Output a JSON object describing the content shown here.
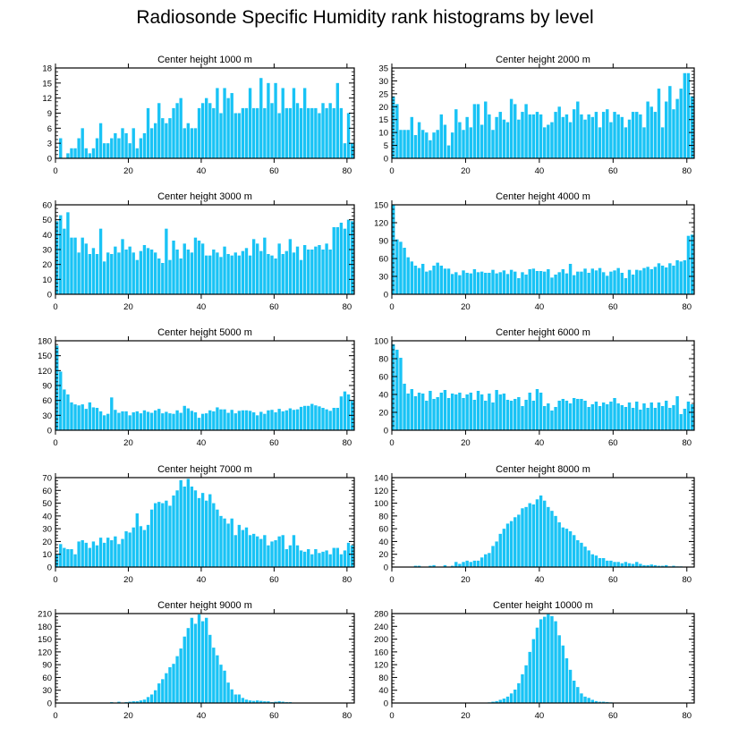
{
  "figure": {
    "title": "Radiosonde Specific Humidity rank histograms by level"
  },
  "colors": {
    "bar": "#19c3f5",
    "bar_edge": "#0e9fd6",
    "axis": "#000000"
  },
  "chart_data": [
    {
      "type": "bar",
      "title": "Center height 1000 m",
      "xlim": [
        0,
        82
      ],
      "ylim": [
        0,
        18
      ],
      "xticks": [
        0,
        20,
        40,
        60,
        80
      ],
      "yticks": [
        0,
        3,
        6,
        9,
        12,
        15,
        18
      ],
      "values": [
        0,
        4,
        0,
        1,
        2,
        2,
        4,
        6,
        2,
        1,
        2,
        4,
        7,
        3,
        3,
        4,
        5,
        4,
        6,
        5,
        3,
        6,
        2,
        4,
        5,
        10,
        6,
        7,
        11,
        8,
        7,
        8,
        10,
        11,
        12,
        6,
        7,
        6,
        6,
        10,
        11,
        12,
        11,
        10,
        14,
        9,
        14,
        12,
        13,
        9,
        9,
        10,
        10,
        14,
        10,
        10,
        16,
        10,
        15,
        11,
        15,
        9,
        14,
        10,
        10,
        14,
        11,
        10,
        14,
        10,
        10,
        10,
        9,
        11,
        10,
        11,
        10,
        15,
        10,
        3,
        9,
        3
      ]
    },
    {
      "type": "bar",
      "title": "Center height 2000 m",
      "xlim": [
        0,
        82
      ],
      "ylim": [
        0,
        35
      ],
      "xticks": [
        0,
        20,
        40,
        60,
        80
      ],
      "yticks": [
        0,
        5,
        10,
        15,
        20,
        25,
        30,
        35
      ],
      "values": [
        24,
        21,
        11,
        11,
        11,
        16,
        9,
        14,
        11,
        10,
        7,
        10,
        11,
        17,
        13,
        5,
        10,
        19,
        14,
        11,
        16,
        12,
        21,
        21,
        13,
        22,
        17,
        11,
        16,
        18,
        15,
        14,
        23,
        21,
        15,
        18,
        21,
        17,
        17,
        18,
        17,
        12,
        13,
        14,
        18,
        20,
        16,
        17,
        14,
        19,
        22,
        17,
        15,
        17,
        16,
        18,
        12,
        18,
        19,
        14,
        18,
        17,
        16,
        12,
        15,
        18,
        18,
        17,
        12,
        22,
        20,
        18,
        27,
        12,
        22,
        28,
        19,
        23,
        27,
        33,
        33,
        24
      ]
    },
    {
      "type": "bar",
      "title": "Center height 3000 m",
      "xlim": [
        0,
        82
      ],
      "ylim": [
        0,
        60
      ],
      "xticks": [
        0,
        20,
        40,
        60,
        80
      ],
      "yticks": [
        0,
        10,
        20,
        30,
        40,
        50,
        60
      ],
      "values": [
        49,
        53,
        44,
        55,
        38,
        38,
        28,
        38,
        34,
        27,
        31,
        27,
        44,
        22,
        28,
        27,
        32,
        28,
        37,
        30,
        32,
        28,
        23,
        29,
        33,
        31,
        30,
        28,
        24,
        21,
        44,
        23,
        36,
        30,
        24,
        34,
        30,
        28,
        38,
        36,
        34,
        26,
        26,
        30,
        28,
        25,
        32,
        27,
        26,
        28,
        26,
        29,
        31,
        26,
        37,
        34,
        29,
        38,
        27,
        26,
        24,
        34,
        27,
        29,
        37,
        28,
        32,
        23,
        33,
        30,
        30,
        32,
        33,
        30,
        34,
        30,
        45,
        45,
        48,
        44,
        50,
        49
      ]
    },
    {
      "type": "bar",
      "title": "Center height 4000 m",
      "xlim": [
        0,
        82
      ],
      "ylim": [
        0,
        150
      ],
      "xticks": [
        0,
        20,
        40,
        60,
        80
      ],
      "yticks": [
        0,
        30,
        60,
        90,
        120,
        150
      ],
      "values": [
        150,
        92,
        88,
        78,
        62,
        55,
        48,
        44,
        51,
        38,
        40,
        48,
        53,
        48,
        43,
        43,
        34,
        37,
        32,
        40,
        36,
        35,
        42,
        37,
        38,
        36,
        36,
        41,
        35,
        37,
        40,
        34,
        41,
        38,
        27,
        37,
        33,
        42,
        43,
        39,
        39,
        38,
        42,
        28,
        33,
        37,
        42,
        35,
        51,
        32,
        38,
        38,
        43,
        36,
        43,
        40,
        44,
        37,
        31,
        38,
        40,
        44,
        36,
        27,
        41,
        33,
        41,
        40,
        44,
        46,
        42,
        46,
        52,
        48,
        45,
        52,
        48,
        57,
        55,
        57,
        98,
        100
      ]
    },
    {
      "type": "bar",
      "title": "Center height 5000 m",
      "xlim": [
        0,
        82
      ],
      "ylim": [
        0,
        180
      ],
      "xticks": [
        0,
        20,
        40,
        60,
        80
      ],
      "yticks": [
        0,
        30,
        60,
        90,
        120,
        150,
        180
      ],
      "values": [
        170,
        118,
        82,
        72,
        56,
        52,
        50,
        52,
        43,
        56,
        46,
        45,
        38,
        30,
        33,
        66,
        41,
        35,
        38,
        38,
        30,
        36,
        38,
        34,
        40,
        37,
        35,
        40,
        43,
        34,
        37,
        34,
        33,
        40,
        35,
        49,
        44,
        39,
        36,
        25,
        33,
        34,
        40,
        38,
        46,
        42,
        42,
        35,
        41,
        34,
        39,
        40,
        40,
        39,
        36,
        30,
        37,
        33,
        40,
        41,
        36,
        43,
        38,
        40,
        44,
        41,
        42,
        47,
        49,
        49,
        53,
        50,
        48,
        45,
        42,
        39,
        45,
        45,
        68,
        78,
        72,
        59
      ]
    },
    {
      "type": "bar",
      "title": "Center height 6000 m",
      "xlim": [
        0,
        82
      ],
      "ylim": [
        0,
        100
      ],
      "xticks": [
        0,
        20,
        40,
        60,
        80
      ],
      "yticks": [
        0,
        20,
        40,
        60,
        80,
        100
      ],
      "values": [
        96,
        90,
        81,
        52,
        41,
        46,
        38,
        42,
        41,
        33,
        44,
        35,
        37,
        42,
        45,
        36,
        41,
        40,
        42,
        36,
        40,
        42,
        34,
        44,
        40,
        33,
        41,
        31,
        45,
        40,
        41,
        34,
        33,
        35,
        37,
        27,
        34,
        42,
        33,
        46,
        42,
        27,
        30,
        22,
        26,
        33,
        35,
        33,
        30,
        36,
        35,
        35,
        33,
        26,
        29,
        32,
        27,
        31,
        29,
        32,
        36,
        30,
        28,
        26,
        31,
        25,
        32,
        23,
        30,
        25,
        31,
        25,
        31,
        27,
        33,
        25,
        28,
        38,
        18,
        24,
        32,
        29
      ]
    },
    {
      "type": "bar",
      "title": "Center height 7000 m",
      "xlim": [
        0,
        82
      ],
      "ylim": [
        0,
        70
      ],
      "xticks": [
        0,
        20,
        40,
        60,
        80
      ],
      "yticks": [
        0,
        10,
        20,
        30,
        40,
        50,
        60,
        70
      ],
      "values": [
        10,
        18,
        15,
        14,
        14,
        10,
        20,
        21,
        19,
        15,
        20,
        17,
        23,
        19,
        23,
        21,
        24,
        18,
        22,
        28,
        27,
        31,
        42,
        32,
        29,
        33,
        45,
        50,
        51,
        50,
        52,
        48,
        56,
        60,
        68,
        63,
        69,
        63,
        60,
        54,
        58,
        52,
        57,
        50,
        45,
        40,
        38,
        34,
        38,
        25,
        33,
        29,
        31,
        25,
        26,
        24,
        22,
        25,
        17,
        20,
        21,
        24,
        25,
        14,
        17,
        25,
        17,
        13,
        12,
        14,
        10,
        14,
        11,
        12,
        13,
        10,
        15,
        15,
        10,
        13,
        19,
        17
      ]
    },
    {
      "type": "bar",
      "title": "Center height 8000 m",
      "xlim": [
        0,
        82
      ],
      "ylim": [
        0,
        140
      ],
      "xticks": [
        0,
        20,
        40,
        60,
        80
      ],
      "yticks": [
        0,
        20,
        40,
        60,
        80,
        100,
        120,
        140
      ],
      "values": [
        0,
        0,
        0,
        0,
        0,
        0,
        2,
        2,
        0,
        0,
        2,
        3,
        0,
        0,
        3,
        0,
        2,
        8,
        5,
        8,
        10,
        8,
        10,
        10,
        15,
        20,
        22,
        33,
        40,
        52,
        60,
        68,
        72,
        78,
        82,
        92,
        94,
        100,
        98,
        106,
        112,
        104,
        94,
        88,
        80,
        70,
        62,
        60,
        56,
        50,
        42,
        38,
        32,
        26,
        20,
        18,
        14,
        14,
        10,
        10,
        8,
        8,
        6,
        8,
        6,
        5,
        8,
        5,
        3,
        3,
        4,
        3,
        2,
        2,
        3,
        1,
        2,
        1,
        1,
        0,
        0,
        0
      ]
    },
    {
      "type": "bar",
      "title": "Center height 9000 m",
      "xlim": [
        0,
        82
      ],
      "ylim": [
        0,
        210
      ],
      "xticks": [
        0,
        20,
        40,
        60,
        80
      ],
      "yticks": [
        0,
        30,
        60,
        90,
        120,
        150,
        180,
        210
      ],
      "values": [
        0,
        0,
        0,
        0,
        0,
        0,
        0,
        0,
        0,
        0,
        0,
        0,
        0,
        0,
        0,
        2,
        0,
        3,
        0,
        2,
        3,
        4,
        4,
        6,
        8,
        14,
        20,
        30,
        46,
        56,
        70,
        84,
        92,
        110,
        128,
        156,
        176,
        200,
        186,
        208,
        192,
        200,
        160,
        130,
        112,
        90,
        76,
        48,
        32,
        20,
        20,
        12,
        8,
        6,
        5,
        6,
        5,
        4,
        4,
        2,
        3,
        4,
        3,
        2,
        2,
        1,
        1,
        1,
        0,
        0,
        0,
        0,
        0,
        0,
        0,
        0,
        0,
        0,
        0,
        0,
        0,
        0
      ]
    },
    {
      "type": "bar",
      "title": "Center height 10000 m",
      "xlim": [
        0,
        82
      ],
      "ylim": [
        0,
        280
      ],
      "xticks": [
        0,
        20,
        40,
        60,
        80
      ],
      "yticks": [
        0,
        40,
        80,
        120,
        160,
        200,
        240,
        280
      ],
      "values": [
        0,
        0,
        0,
        0,
        0,
        0,
        0,
        0,
        0,
        0,
        0,
        0,
        0,
        0,
        0,
        0,
        0,
        0,
        0,
        0,
        0,
        0,
        0,
        0,
        0,
        1,
        2,
        4,
        6,
        10,
        14,
        20,
        30,
        42,
        62,
        90,
        118,
        160,
        200,
        236,
        262,
        270,
        278,
        272,
        256,
        212,
        180,
        140,
        104,
        70,
        50,
        30,
        20,
        16,
        10,
        6,
        4,
        4,
        3,
        2,
        1,
        1,
        0,
        0,
        0,
        0,
        0,
        0,
        0,
        0,
        0,
        0,
        0,
        0,
        0,
        0,
        0,
        0,
        0,
        0,
        0,
        0
      ]
    }
  ]
}
